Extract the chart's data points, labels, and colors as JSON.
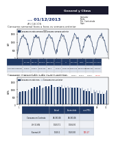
{
  "header_bar_color": "#1a1a2e",
  "header_text": "General y Clima",
  "date_label": "01/12/2013",
  "date_prefix": "... ",
  "subtitle": "APLICACIÓN",
  "right_labels": [
    "Contador",
    "Tarifa",
    "Pot. Contratada",
    "Cups"
  ],
  "section1_title": "Consumo semanal hora a hora vs semana anterior",
  "section2_title": "Consumo mensual día a día vs mes anterior",
  "legend1a": "Consumo en esta semana",
  "legend1b": "Consumo semana anterior",
  "legend2a": "Consumo en este mes",
  "legend2b": "Consumo mes anterior",
  "line1_color": "#1f3864",
  "line2_color": "#aaaaaa",
  "bar_current_color": "#1f3864",
  "bar_prev_color": "#c8d0dc",
  "table1_header_color": "#1f3864",
  "table1_headers": [
    "",
    "Lun-Mar",
    "Mie-Jue",
    "Vie-Dom",
    "Laborable",
    "Festivo",
    "LH",
    "Consumo",
    "Punta",
    "Promedio",
    "con PR%"
  ],
  "table1_row1": [
    "Consumo semanal",
    "1,425.6",
    "1,482.5",
    "1,500.054",
    "427.1",
    "1,004.4",
    "1,029.134",
    "2,913.134",
    "100,001.6",
    "48,985.234",
    "272,022"
  ],
  "table1_row2": [
    "Semana ant.",
    "548.49",
    "432.47",
    "1,504.5",
    "586.5",
    "1,002.7",
    "1,040.1",
    "4,180.1",
    "1,502.1",
    "1,040.1",
    "146.48"
  ],
  "table2_headers": [
    "",
    "Actual",
    "Acumulado",
    "con PR%"
  ],
  "table2_rows": [
    [
      "Consumo en Contrato",
      "48,391.06",
      "48,391.06",
      ""
    ],
    [
      "LH 31 kW",
      "1,500.71",
      "1,556.50",
      ""
    ],
    [
      "Exceso LH",
      "1,500.1",
      "1,500.50",
      "105.17"
    ]
  ],
  "bg_color": "#ffffff",
  "line_chart_n_points": 168,
  "bar_chart_n_bars": 31
}
